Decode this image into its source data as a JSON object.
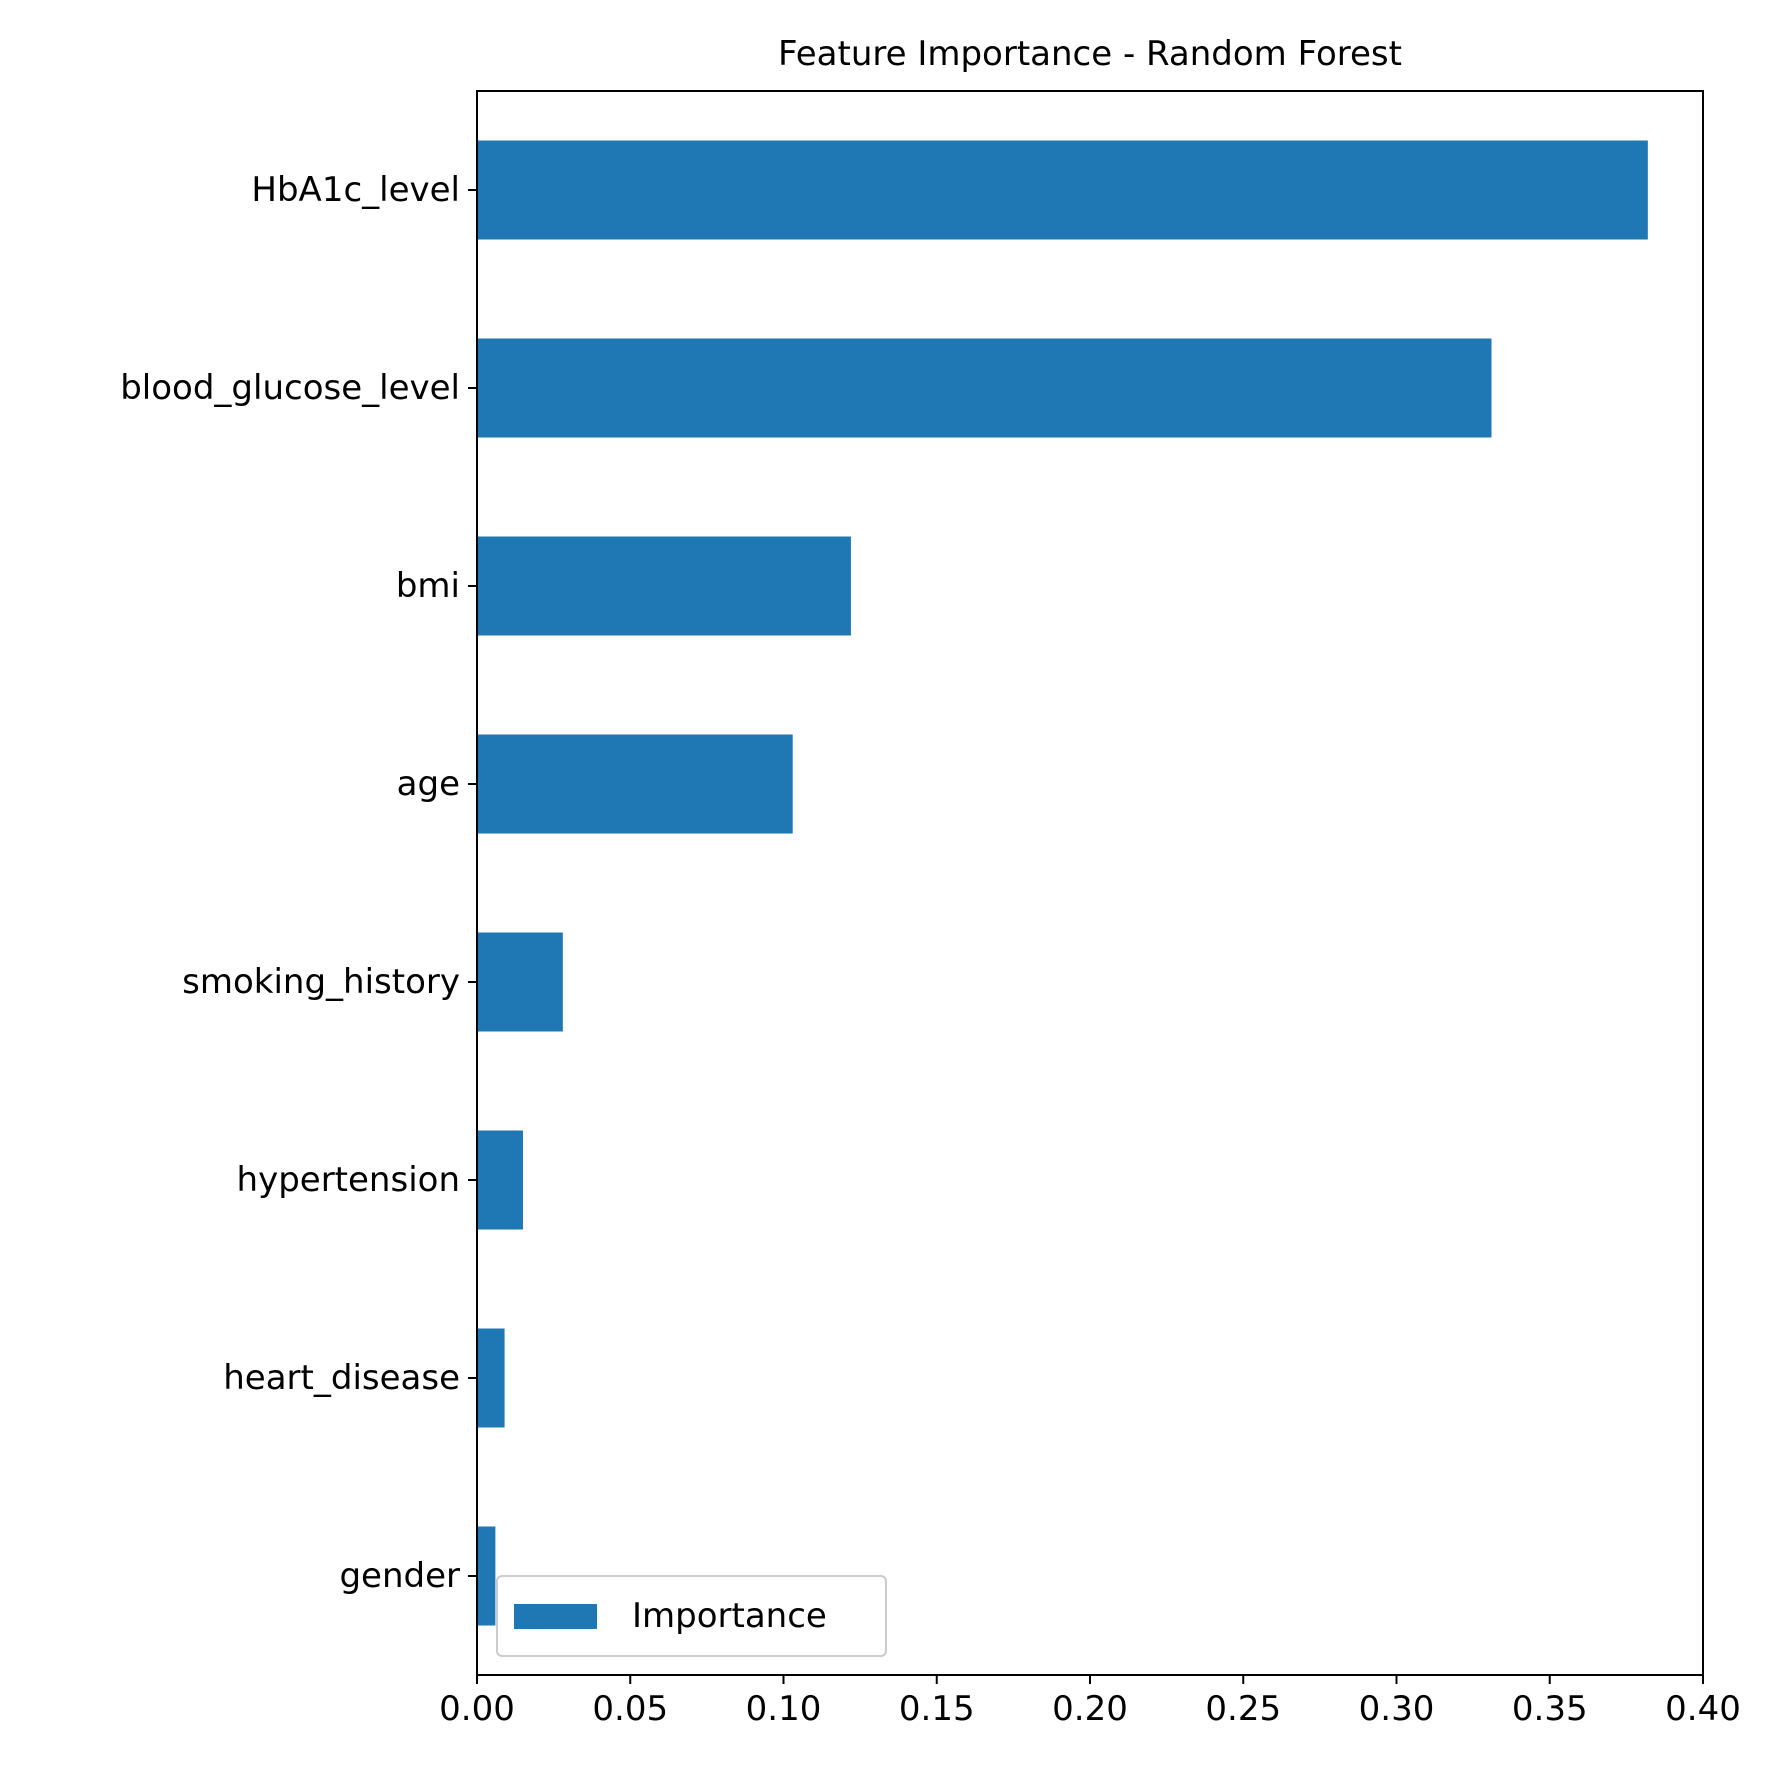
{
  "chart_data": {
    "type": "bar",
    "orientation": "horizontal",
    "title": "Feature Importance - Random Forest",
    "xlabel": "",
    "ylabel": "",
    "categories": [
      "HbA1c_level",
      "blood_glucose_level",
      "bmi",
      "age",
      "smoking_history",
      "hypertension",
      "heart_disease",
      "gender"
    ],
    "series": [
      {
        "name": "Importance",
        "values": [
          0.382,
          0.331,
          0.122,
          0.103,
          0.028,
          0.015,
          0.009,
          0.006
        ],
        "color": "#1f77b4"
      }
    ],
    "xlim": [
      0,
      0.4
    ],
    "xticks": [
      0.0,
      0.05,
      0.1,
      0.15,
      0.2,
      0.25,
      0.3,
      0.35,
      0.4
    ],
    "xtick_labels": [
      "0.00",
      "0.05",
      "0.10",
      "0.15",
      "0.20",
      "0.25",
      "0.30",
      "0.35",
      "0.40"
    ],
    "grid": false,
    "legend": {
      "position": "lower-left",
      "entries": [
        "Importance"
      ]
    }
  }
}
